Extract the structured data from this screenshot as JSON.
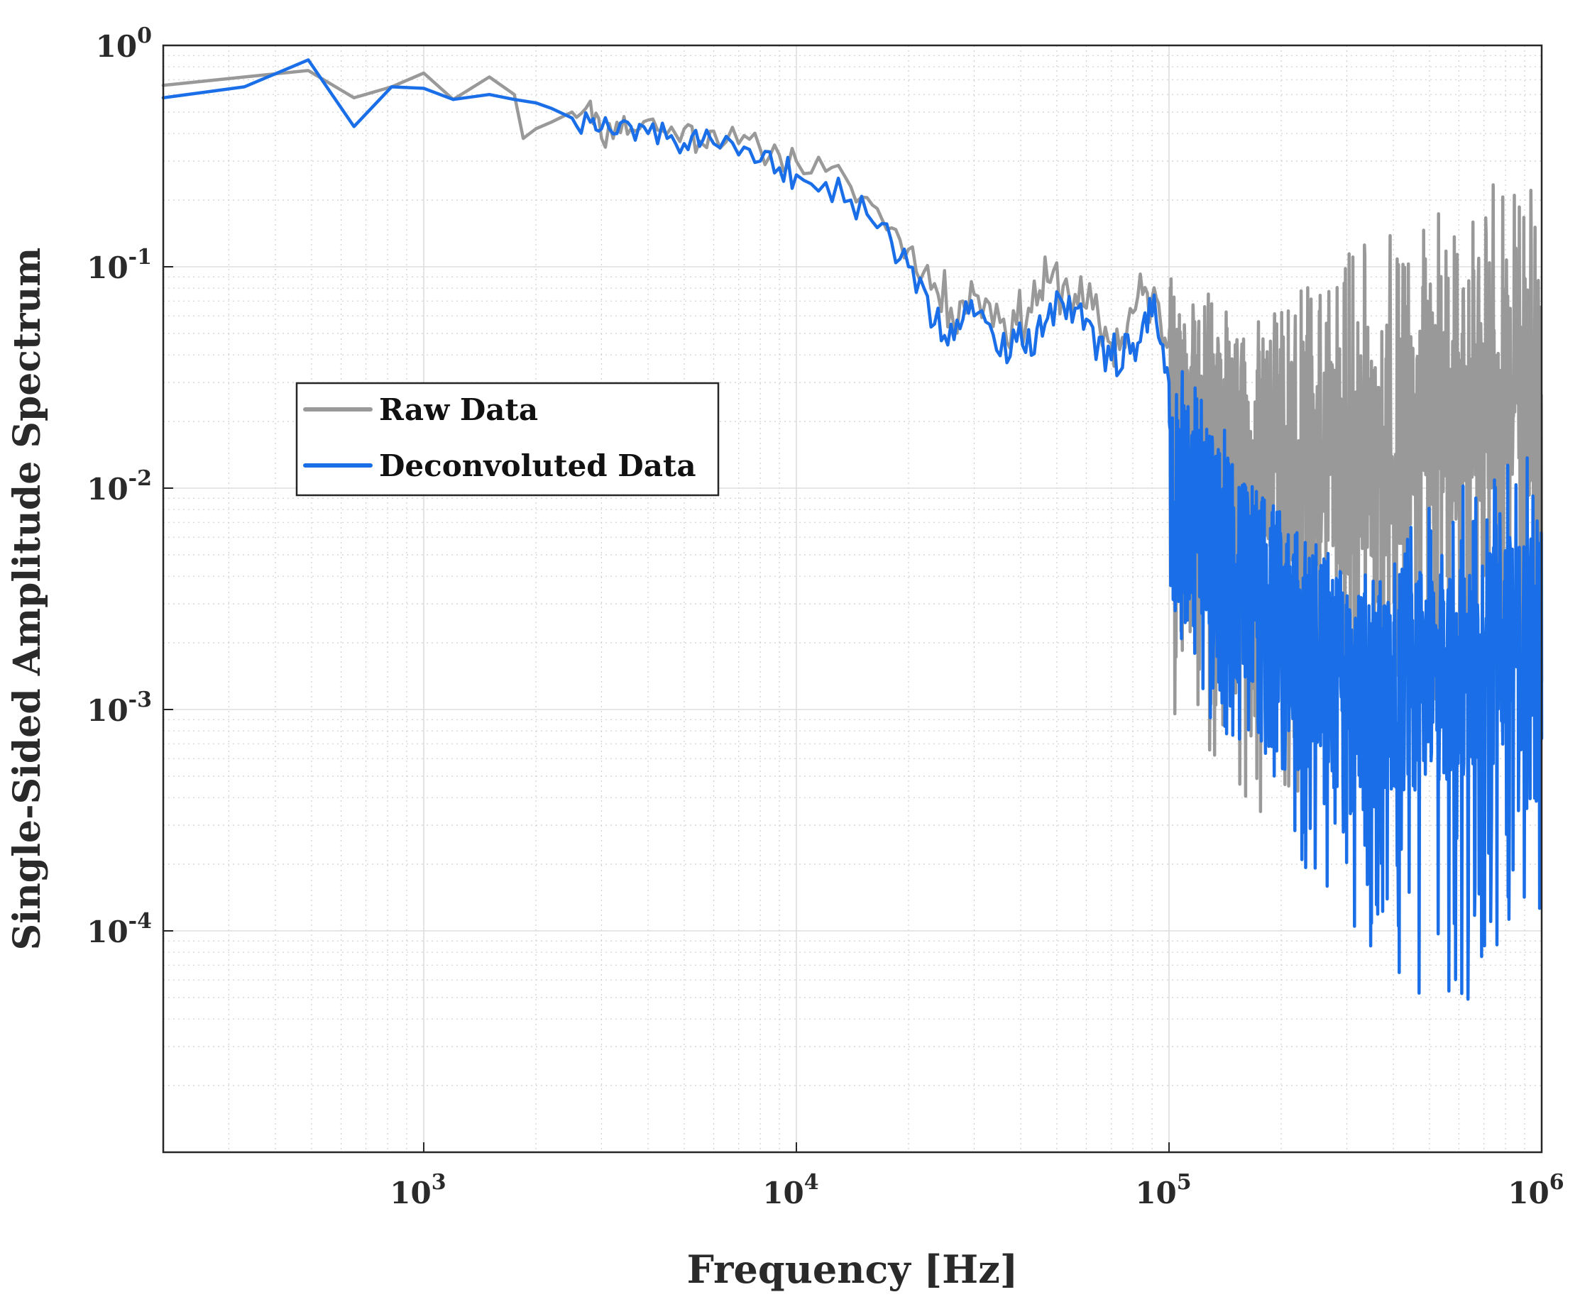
{
  "chart_data": {
    "type": "line",
    "scale": "log-log",
    "title": "",
    "xlabel": "Frequency [Hz]",
    "ylabel": "Single-Sided Amplitude Spectrum",
    "xlim": [
      200,
      1000000
    ],
    "ylim": [
      1e-05,
      1
    ],
    "grid": true,
    "minor_grid": true,
    "legend_position": "upper-left",
    "x_ticks": [
      {
        "value": 1000,
        "base": "10",
        "exp": "3"
      },
      {
        "value": 10000,
        "base": "10",
        "exp": "4"
      },
      {
        "value": 100000,
        "base": "10",
        "exp": "5"
      },
      {
        "value": 1000000,
        "base": "10",
        "exp": "6"
      }
    ],
    "y_ticks": [
      {
        "value": 1,
        "base": "10",
        "exp": "0"
      },
      {
        "value": 0.1,
        "base": "10",
        "exp": "-1"
      },
      {
        "value": 0.01,
        "base": "10",
        "exp": "-2"
      },
      {
        "value": 0.001,
        "base": "10",
        "exp": "-3"
      },
      {
        "value": 0.0001,
        "base": "10",
        "exp": "-4"
      }
    ],
    "series": [
      {
        "name": "Raw Data",
        "color": "#999999",
        "x": [
          200,
          330,
          490,
          650,
          820,
          1000,
          1200,
          1500,
          1750,
          1850,
          2000,
          2200,
          2500,
          2800,
          3000,
          3300,
          3600,
          4000,
          4500,
          5000,
          5500,
          6000,
          7000,
          8000,
          9000,
          10000,
          12000,
          14000,
          16000,
          18000,
          20000,
          22000,
          24000,
          26000,
          28000,
          30000,
          33000,
          36000,
          39000,
          42000,
          45000,
          48000,
          52000,
          56000,
          60000,
          65000,
          70000,
          75000,
          80000,
          85000,
          90000,
          95000,
          100000
        ],
        "y": [
          0.66,
          0.72,
          0.77,
          0.58,
          0.65,
          0.75,
          0.57,
          0.72,
          0.6,
          0.38,
          0.42,
          0.45,
          0.5,
          0.56,
          0.38,
          0.45,
          0.42,
          0.46,
          0.4,
          0.42,
          0.37,
          0.41,
          0.36,
          0.34,
          0.32,
          0.3,
          0.27,
          0.23,
          0.19,
          0.15,
          0.12,
          0.095,
          0.075,
          0.065,
          0.07,
          0.075,
          0.068,
          0.058,
          0.055,
          0.065,
          0.078,
          0.085,
          0.082,
          0.075,
          0.065,
          0.055,
          0.045,
          0.048,
          0.062,
          0.075,
          0.072,
          0.055,
          0.045
        ],
        "hf_noise": {
          "x_range": [
            100000,
            1000000
          ],
          "envelope_top": [
            0.09,
            0.06,
            0.12,
            0.2,
            0.28
          ],
          "envelope_bottom": [
            0.001,
            0.0003,
            0.0005,
            0.0009,
            0.0006
          ],
          "typical": [
            0.02,
            0.015,
            0.012,
            0.02,
            0.03
          ]
        }
      },
      {
        "name": "Deconvoluted Data",
        "color": "#1a6fe8",
        "x": [
          200,
          330,
          490,
          650,
          820,
          1000,
          1200,
          1500,
          1750,
          2000,
          2200,
          2500,
          2800,
          3000,
          3300,
          3600,
          4000,
          4500,
          5000,
          5500,
          6000,
          7000,
          8000,
          9000,
          10000,
          12000,
          14000,
          16000,
          18000,
          20000,
          22000,
          24000,
          26000,
          28000,
          30000,
          33000,
          36000,
          39000,
          42000,
          45000,
          48000,
          52000,
          56000,
          60000,
          65000,
          70000,
          75000,
          80000,
          85000,
          90000,
          95000,
          100000
        ],
        "y": [
          0.58,
          0.65,
          0.86,
          0.43,
          0.65,
          0.64,
          0.57,
          0.6,
          0.57,
          0.55,
          0.52,
          0.47,
          0.45,
          0.42,
          0.4,
          0.43,
          0.4,
          0.38,
          0.36,
          0.35,
          0.36,
          0.32,
          0.3,
          0.28,
          0.26,
          0.24,
          0.2,
          0.16,
          0.13,
          0.1,
          0.08,
          0.065,
          0.055,
          0.058,
          0.06,
          0.055,
          0.05,
          0.046,
          0.052,
          0.06,
          0.068,
          0.068,
          0.065,
          0.058,
          0.048,
          0.038,
          0.035,
          0.045,
          0.055,
          0.06,
          0.045,
          0.03
        ],
        "hf_noise": {
          "x_range": [
            100000,
            1000000
          ],
          "envelope_top": [
            0.045,
            0.01,
            0.004,
            0.012,
            0.016
          ],
          "envelope_bottom": [
            0.0015,
            0.0004,
            8e-05,
            4e-05,
            0.0001
          ],
          "typical": [
            0.01,
            0.003,
            0.001,
            0.0015,
            0.002
          ]
        }
      }
    ],
    "legend": [
      {
        "label": "Raw Data",
        "color": "#999999"
      },
      {
        "label": "Deconvoluted Data",
        "color": "#1a6fe8"
      }
    ]
  }
}
